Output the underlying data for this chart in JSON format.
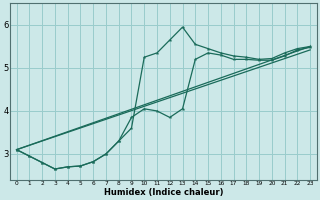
{
  "xlabel": "Humidex (Indice chaleur)",
  "bg_color": "#cce8e8",
  "grid_color": "#99cccc",
  "line_color": "#1a6b5a",
  "xlim": [
    -0.5,
    23.5
  ],
  "ylim": [
    2.4,
    6.5
  ],
  "yticks": [
    3,
    4,
    5,
    6
  ],
  "xticks": [
    0,
    1,
    2,
    3,
    4,
    5,
    6,
    7,
    8,
    9,
    10,
    11,
    12,
    13,
    14,
    15,
    16,
    17,
    18,
    19,
    20,
    21,
    22,
    23
  ],
  "line1_x": [
    0,
    1,
    2,
    3,
    4,
    5,
    6,
    7,
    8,
    9,
    10,
    11,
    12,
    13,
    14,
    15,
    16,
    17,
    18,
    19,
    20,
    21,
    22,
    23
  ],
  "line1_y": [
    3.1,
    2.95,
    2.8,
    2.65,
    2.7,
    2.72,
    2.82,
    3.0,
    3.3,
    3.6,
    5.25,
    5.35,
    5.65,
    5.95,
    5.55,
    5.45,
    5.35,
    5.28,
    5.25,
    5.2,
    5.22,
    5.35,
    5.45,
    5.5
  ],
  "line2_x": [
    0,
    1,
    2,
    3,
    4,
    5,
    6,
    7,
    8,
    9,
    10,
    11,
    12,
    13,
    14,
    15,
    16,
    17,
    18,
    19,
    20,
    21,
    22,
    23
  ],
  "line2_y": [
    3.1,
    2.95,
    2.8,
    2.65,
    2.7,
    2.72,
    2.82,
    3.0,
    3.3,
    3.85,
    4.05,
    4.0,
    3.85,
    4.05,
    5.2,
    5.35,
    5.3,
    5.2,
    5.2,
    5.18,
    5.18,
    5.28,
    5.42,
    5.48
  ],
  "line3_x": [
    0,
    23
  ],
  "line3_y": [
    3.1,
    5.5
  ],
  "line4_x": [
    0,
    23
  ],
  "line4_y": [
    3.1,
    5.42
  ]
}
